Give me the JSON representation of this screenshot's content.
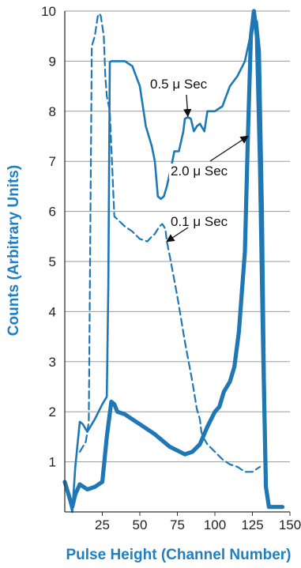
{
  "chart_data": {
    "type": "line",
    "xlabel": "Pulse Height (Channel Number)",
    "ylabel": "Counts (Arbitrary Units)",
    "xlim": [
      0,
      150
    ],
    "ylim": [
      0,
      10
    ],
    "x_ticks": [
      25,
      50,
      75,
      100,
      125,
      150
    ],
    "y_ticks": [
      1,
      2,
      3,
      4,
      5,
      6,
      7,
      8,
      9,
      10
    ],
    "grid": "horizontal",
    "colors": {
      "series": "#1f77b4",
      "grid": "#9a9a9a",
      "axis_title": "#1f7fc0"
    },
    "series": [
      {
        "name": "0.5 μ Sec",
        "style": "solid-thin",
        "x": [
          0,
          2,
          5,
          7,
          10,
          12,
          15,
          20,
          25,
          28,
          29,
          30,
          31,
          33,
          40,
          45,
          50,
          54,
          56,
          58,
          60,
          62,
          64,
          66,
          68,
          71,
          73,
          76,
          79,
          80,
          82,
          84,
          86,
          88,
          90,
          93,
          95,
          100,
          105,
          110,
          115,
          120,
          125,
          128,
          130,
          132,
          134
        ],
        "y": [
          0.55,
          0.35,
          0.0,
          0.9,
          1.8,
          1.75,
          1.6,
          1.85,
          2.15,
          2.3,
          4.5,
          8.98,
          9.0,
          9.0,
          9.0,
          8.9,
          8.5,
          7.7,
          7.5,
          7.3,
          7.0,
          6.3,
          6.25,
          6.3,
          6.5,
          6.9,
          7.2,
          7.2,
          7.6,
          7.85,
          7.88,
          7.85,
          7.6,
          7.7,
          7.75,
          7.6,
          8.0,
          8.0,
          8.1,
          8.5,
          8.7,
          9.0,
          9.7,
          9.8,
          9.2,
          6.0,
          0.8
        ]
      },
      {
        "name": "0.1 μ Sec",
        "style": "dashed",
        "x": [
          10,
          12,
          14,
          16,
          18,
          20,
          22,
          23,
          24,
          26,
          27,
          28,
          30,
          33,
          40,
          45,
          50,
          55,
          58,
          60,
          63,
          65,
          67,
          68,
          70,
          75,
          80,
          85,
          88,
          90,
          91,
          92,
          95,
          100,
          105,
          110,
          115,
          120,
          125,
          130
        ],
        "y": [
          1.2,
          1.3,
          1.4,
          1.8,
          9.3,
          9.5,
          9.9,
          9.95,
          9.9,
          9.5,
          8.7,
          8.3,
          8.0,
          5.9,
          5.7,
          5.6,
          5.45,
          5.4,
          5.5,
          5.55,
          5.7,
          5.75,
          5.65,
          5.4,
          5.1,
          4.3,
          3.4,
          2.6,
          2.05,
          1.85,
          1.6,
          1.5,
          1.35,
          1.2,
          1.05,
          0.95,
          0.9,
          0.8,
          0.8,
          0.9
        ]
      },
      {
        "name": "2.0 μ Sec",
        "style": "solid-thick",
        "x": [
          0,
          3,
          5,
          7,
          10,
          15,
          20,
          25,
          28,
          31,
          33,
          35,
          40,
          50,
          60,
          70,
          80,
          85,
          90,
          95,
          100,
          103,
          106,
          110,
          113,
          116,
          120,
          122,
          124,
          126,
          128,
          130,
          132,
          134,
          136,
          145
        ],
        "y": [
          0.6,
          0.3,
          0.1,
          0.35,
          0.55,
          0.45,
          0.5,
          0.6,
          1.5,
          2.2,
          2.15,
          2.0,
          1.95,
          1.75,
          1.55,
          1.3,
          1.15,
          1.2,
          1.35,
          1.7,
          2.0,
          2.1,
          2.4,
          2.6,
          2.9,
          3.6,
          5.2,
          7.5,
          9.5,
          10.0,
          9.5,
          7.0,
          3.5,
          0.5,
          0.1,
          0.1
        ]
      }
    ],
    "annotations": [
      {
        "text": "0.5 μ Sec",
        "target": [
          82,
          7.9
        ]
      },
      {
        "text": "2.0 μ Sec",
        "target": [
          122,
          7.5
        ]
      },
      {
        "text": "0.1 μ Sec",
        "target": [
          68,
          5.4
        ]
      }
    ]
  }
}
